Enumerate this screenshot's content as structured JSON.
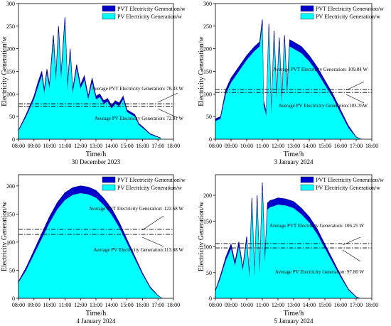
{
  "chart_data": [
    {
      "type": "area",
      "title": "30 December 2023",
      "xlabel": "Time/h",
      "ylabel": "Electricity Generation/w",
      "xlim": [
        "08:00",
        "18:00"
      ],
      "ylim": [
        0,
        300
      ],
      "xticks": [
        "08:00",
        "09:00",
        "10:00",
        "11:00",
        "12:00",
        "13:00",
        "14:00",
        "15:00",
        "16:00",
        "17:00",
        "18:00"
      ],
      "yticks": [
        0,
        50,
        100,
        150,
        200,
        250,
        300
      ],
      "legend": "top-right",
      "series": [
        {
          "name": "PVT Electricity Generation/w",
          "color": "#0000cc",
          "x": [
            "08:00",
            "08:30",
            "09:00",
            "09:15",
            "09:30",
            "09:40",
            "09:50",
            "10:00",
            "10:15",
            "10:25",
            "10:35",
            "10:45",
            "11:00",
            "11:10",
            "11:20",
            "11:30",
            "11:45",
            "12:00",
            "12:15",
            "12:30",
            "12:45",
            "13:00",
            "13:15",
            "13:30",
            "13:45",
            "14:00",
            "14:15",
            "14:30",
            "14:45",
            "15:00",
            "15:15",
            "15:30",
            "15:45",
            "16:00",
            "16:15",
            "16:30",
            "17:00",
            "17:10"
          ],
          "values": [
            20,
            55,
            95,
            125,
            150,
            110,
            155,
            120,
            230,
            140,
            250,
            145,
            270,
            120,
            200,
            110,
            165,
            120,
            140,
            95,
            135,
            95,
            100,
            85,
            90,
            75,
            85,
            80,
            95,
            65,
            60,
            55,
            35,
            28,
            20,
            12,
            5,
            3
          ]
        },
        {
          "name": "PV Electricity Generation/w",
          "color": "#00ffff",
          "x": [
            "08:00",
            "08:30",
            "09:00",
            "09:15",
            "09:30",
            "09:40",
            "09:50",
            "10:00",
            "10:15",
            "10:25",
            "10:35",
            "10:45",
            "11:00",
            "11:10",
            "11:20",
            "11:30",
            "11:45",
            "12:00",
            "12:15",
            "12:30",
            "12:45",
            "13:00",
            "13:15",
            "13:30",
            "13:45",
            "14:00",
            "14:15",
            "14:30",
            "14:45",
            "15:00",
            "15:15",
            "15:30",
            "15:45",
            "16:00",
            "16:15",
            "16:30",
            "17:00",
            "17:10"
          ],
          "values": [
            18,
            50,
            88,
            115,
            140,
            102,
            145,
            112,
            215,
            130,
            235,
            135,
            255,
            110,
            188,
            102,
            155,
            112,
            130,
            88,
            125,
            88,
            93,
            78,
            83,
            68,
            78,
            73,
            88,
            60,
            55,
            50,
            32,
            25,
            18,
            10,
            4,
            2
          ]
        }
      ],
      "hlines": [
        {
          "label": "Average PVT Electricity Generation: 78.33 W",
          "value": 78.33
        },
        {
          "label": "Average PV Electricity Generation: 72.91 W",
          "value": 72.91
        }
      ]
    },
    {
      "type": "area",
      "title": "3 January 2024",
      "xlabel": "Time/h",
      "ylabel": "Electricity Generation/w",
      "xlim": [
        "08:00",
        "18:00"
      ],
      "ylim": [
        0,
        300
      ],
      "xticks": [
        "08:00",
        "09:00",
        "10:00",
        "11:00",
        "12:00",
        "13:00",
        "14:00",
        "15:00",
        "16:00",
        "17:00",
        "18:00"
      ],
      "yticks": [
        0,
        50,
        100,
        150,
        200,
        250,
        300
      ],
      "legend": "top-right",
      "series": [
        {
          "name": "PVT Electricity Generation/w",
          "color": "#0000cc",
          "x": [
            "08:00",
            "08:20",
            "08:40",
            "09:00",
            "09:30",
            "10:00",
            "10:30",
            "10:50",
            "11:00",
            "11:05",
            "11:15",
            "11:25",
            "11:35",
            "11:45",
            "11:55",
            "12:05",
            "12:15",
            "12:25",
            "12:35",
            "12:45",
            "13:00",
            "13:30",
            "14:00",
            "14:30",
            "15:00",
            "15:30",
            "16:00",
            "16:30",
            "17:00",
            "17:20"
          ],
          "values": [
            45,
            50,
            110,
            135,
            160,
            185,
            205,
            215,
            265,
            85,
            60,
            255,
            65,
            240,
            100,
            225,
            90,
            230,
            110,
            220,
            215,
            205,
            185,
            160,
            130,
            100,
            65,
            30,
            5,
            0
          ]
        },
        {
          "name": "PV Electricity Generation/w",
          "color": "#00ffff",
          "x": [
            "08:00",
            "08:20",
            "08:40",
            "09:00",
            "09:30",
            "10:00",
            "10:30",
            "10:50",
            "11:00",
            "11:05",
            "11:15",
            "11:25",
            "11:35",
            "11:45",
            "11:55",
            "12:05",
            "12:15",
            "12:25",
            "12:35",
            "12:45",
            "13:00",
            "13:30",
            "14:00",
            "14:30",
            "15:00",
            "15:30",
            "16:00",
            "16:30",
            "17:00",
            "17:20"
          ],
          "values": [
            40,
            45,
            100,
            125,
            150,
            175,
            195,
            205,
            250,
            75,
            52,
            240,
            58,
            225,
            92,
            210,
            82,
            215,
            100,
            205,
            200,
            190,
            172,
            148,
            120,
            92,
            58,
            25,
            4,
            0
          ]
        }
      ],
      "hlines": [
        {
          "label": "Average PVT Electricity Generation: 109.84 W",
          "value": 109.84
        },
        {
          "label": "Average PV Electricity Generation:103.35W",
          "value": 103.35
        }
      ]
    },
    {
      "type": "area",
      "title": "4 January 2024",
      "xlabel": "Time/h",
      "ylabel": "Electricity Generation/w",
      "xlim": [
        "08:00",
        "18:00"
      ],
      "ylim": [
        0,
        220
      ],
      "xticks": [
        "08:00",
        "09:00",
        "10:00",
        "11:00",
        "12:00",
        "13:00",
        "14:00",
        "15:00",
        "16:00",
        "17:00",
        "18:00"
      ],
      "yticks": [
        0,
        50,
        100,
        150,
        200
      ],
      "legend": "top-right",
      "series": [
        {
          "name": "PVT Electricity Generation/w",
          "color": "#0000cc",
          "x": [
            "08:00",
            "08:30",
            "09:00",
            "09:30",
            "10:00",
            "10:30",
            "11:00",
            "11:30",
            "12:00",
            "12:30",
            "13:00",
            "13:30",
            "14:00",
            "14:30",
            "15:00",
            "15:30",
            "16:00",
            "16:30",
            "17:00",
            "17:15"
          ],
          "values": [
            30,
            55,
            85,
            115,
            145,
            170,
            188,
            197,
            200,
            198,
            192,
            178,
            160,
            135,
            105,
            75,
            45,
            20,
            5,
            0
          ]
        },
        {
          "name": "PV Electricity Generation/w",
          "color": "#00ffff",
          "x": [
            "08:00",
            "08:30",
            "09:00",
            "09:30",
            "10:00",
            "10:30",
            "11:00",
            "11:30",
            "12:00",
            "12:30",
            "13:00",
            "13:30",
            "14:00",
            "14:30",
            "15:00",
            "15:30",
            "16:00",
            "16:30",
            "17:00",
            "17:15"
          ],
          "values": [
            28,
            50,
            78,
            106,
            134,
            158,
            175,
            184,
            187,
            185,
            179,
            166,
            149,
            126,
            98,
            70,
            42,
            18,
            4,
            0
          ]
        }
      ],
      "hlines": [
        {
          "label": "Average PVT Electricity Generation: 122.68 W",
          "value": 122.68
        },
        {
          "label": "Average PV Electricity Generation:113.68 W",
          "value": 113.68
        }
      ]
    },
    {
      "type": "area",
      "title": "5 January 2024",
      "xlabel": "Time/h",
      "ylabel": "Electricity Generation/w",
      "xlim": [
        "08:00",
        "18:00"
      ],
      "ylim": [
        0,
        240
      ],
      "xticks": [
        "08:00",
        "09:00",
        "10:00",
        "11:00",
        "12:00",
        "13:00",
        "14:00",
        "15:00",
        "16:00",
        "17:00",
        "18:00"
      ],
      "yticks": [
        0,
        50,
        100,
        150,
        200
      ],
      "legend": "top-right",
      "series": [
        {
          "name": "PVT Electricity Generation/w",
          "color": "#0000cc",
          "x": [
            "08:00",
            "08:20",
            "08:40",
            "09:00",
            "09:15",
            "09:30",
            "09:45",
            "10:00",
            "10:10",
            "10:20",
            "10:30",
            "10:40",
            "10:50",
            "11:00",
            "11:10",
            "11:20",
            "11:30",
            "11:45",
            "12:00",
            "12:30",
            "13:00",
            "13:30",
            "14:00",
            "14:30",
            "15:00",
            "15:30",
            "16:00",
            "16:30",
            "17:00",
            "17:15"
          ],
          "values": [
            15,
            45,
            80,
            105,
            70,
            110,
            60,
            120,
            45,
            195,
            50,
            200,
            55,
            225,
            80,
            185,
            190,
            192,
            195,
            193,
            188,
            175,
            158,
            135,
            105,
            75,
            45,
            18,
            3,
            0
          ]
        },
        {
          "name": "PV Electricity Generation/w",
          "color": "#00ffff",
          "x": [
            "08:00",
            "08:20",
            "08:40",
            "09:00",
            "09:15",
            "09:30",
            "09:45",
            "10:00",
            "10:10",
            "10:20",
            "10:30",
            "10:40",
            "10:50",
            "11:00",
            "11:10",
            "11:20",
            "11:30",
            "11:45",
            "12:00",
            "12:30",
            "13:00",
            "13:30",
            "14:00",
            "14:30",
            "15:00",
            "15:30",
            "16:00",
            "16:30",
            "17:00",
            "17:15"
          ],
          "values": [
            13,
            40,
            73,
            96,
            63,
            100,
            54,
            110,
            40,
            180,
            45,
            185,
            50,
            210,
            72,
            172,
            177,
            179,
            182,
            180,
            175,
            163,
            147,
            125,
            97,
            69,
            41,
            16,
            2,
            0
          ]
        }
      ],
      "hlines": [
        {
          "label": "Average PVT Electricity Generation: 106.25 W",
          "value": 106.25
        },
        {
          "label": "Average PV Electricity Generation: 97.80 W",
          "value": 97.8
        }
      ]
    }
  ]
}
